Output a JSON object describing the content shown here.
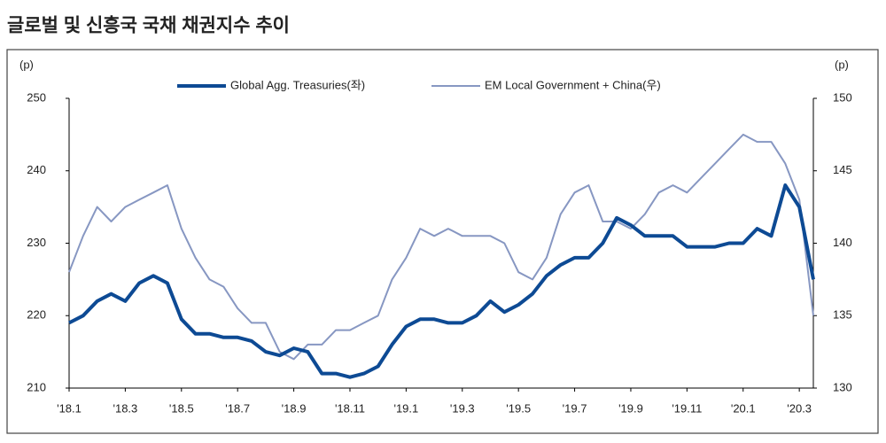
{
  "chart_data": {
    "type": "line",
    "title": "글로벌 및 신흥국 국채 채권지수 추이",
    "y_unit": "(p)",
    "y2_unit": "(p)",
    "categories": [
      "'18.1",
      null,
      null,
      null,
      "'18.3",
      null,
      null,
      null,
      "'18.5",
      null,
      null,
      null,
      "'18.7",
      null,
      null,
      null,
      "'18.9",
      null,
      null,
      null,
      "'18.11",
      null,
      null,
      null,
      "'19.1",
      null,
      null,
      null,
      "'19.3",
      null,
      null,
      null,
      "'19.5",
      null,
      null,
      null,
      "'19.7",
      null,
      null,
      null,
      "'19.9",
      null,
      null,
      null,
      "'19.11",
      null,
      null,
      null,
      "'20.1",
      null,
      null,
      null,
      "'20.3",
      null
    ],
    "series": [
      {
        "name": "Global Agg. Treasuries(좌)",
        "color": "#0d4a94",
        "width": 4,
        "values": [
          219,
          220,
          222,
          223,
          222,
          224.5,
          225.5,
          224.5,
          219.5,
          217.5,
          217.5,
          217,
          217,
          216.5,
          215,
          214.5,
          215.5,
          215,
          212,
          212,
          211.5,
          212,
          213,
          216,
          218.5,
          219.5,
          219.5,
          219,
          219,
          220,
          222,
          220.5,
          221.5,
          223,
          225.5,
          227,
          228,
          228,
          230,
          233.5,
          232.5,
          231,
          231,
          231,
          229.5,
          229.5,
          229.5,
          230,
          230,
          232,
          231,
          238,
          235,
          225
        ]
      },
      {
        "name": "EM Local Government + China(우)",
        "color": "#8797c2",
        "width": 2,
        "axis": "y2",
        "values": [
          138,
          140.5,
          142.5,
          141.5,
          142.5,
          143,
          143.5,
          144,
          141,
          139,
          137.5,
          137,
          135.5,
          134.5,
          134.5,
          132.5,
          132,
          133,
          133,
          134,
          134,
          134.5,
          135,
          137.5,
          139,
          141,
          140.5,
          141,
          140.5,
          140.5,
          140.5,
          140,
          138,
          137.5,
          139,
          142,
          143.5,
          144,
          141.5,
          141.5,
          141,
          142,
          143.5,
          144,
          143.5,
          144.5,
          145.5,
          146.5,
          147.5,
          147,
          147,
          145.5,
          143,
          135
        ]
      }
    ],
    "ylim": [
      210,
      250
    ],
    "yticks": [
      210,
      220,
      230,
      240,
      250
    ],
    "y2lim": [
      130,
      150
    ],
    "y2ticks": [
      130,
      135,
      140,
      145,
      150
    ]
  }
}
